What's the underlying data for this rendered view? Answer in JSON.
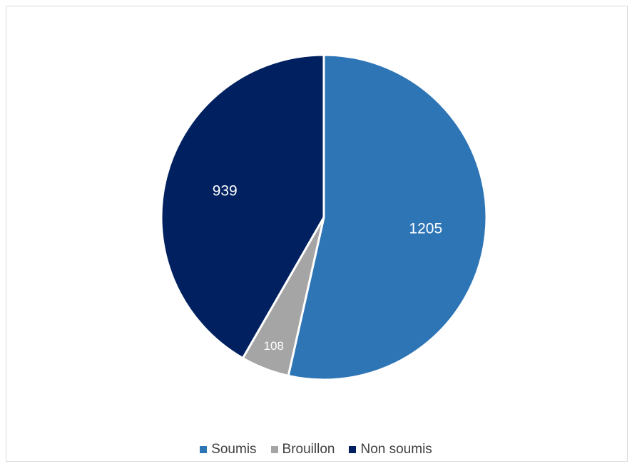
{
  "chart_data": {
    "type": "pie",
    "title": "",
    "categories": [
      "Soumis",
      "Brouillon",
      "Non soumis"
    ],
    "values": [
      1205,
      108,
      939
    ],
    "data_labels": [
      "1205",
      "108",
      "939"
    ],
    "colors": [
      "#2E75B6",
      "#A5A5A5",
      "#002060"
    ],
    "legend_position": "bottom",
    "start_angle_deg": 0,
    "direction": "clockwise"
  }
}
